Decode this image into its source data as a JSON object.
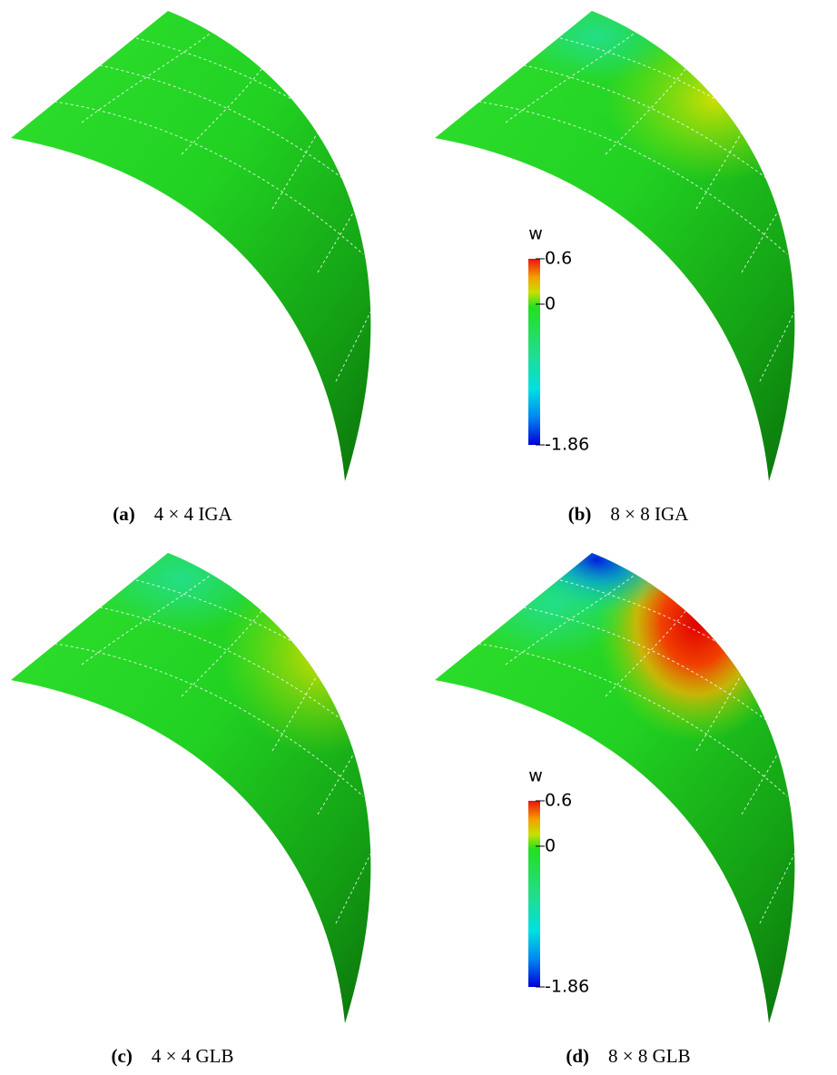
{
  "panels": [
    {
      "label": "(a)",
      "caption": "4 × 4 IGA"
    },
    {
      "label": "(b)",
      "caption": "8 × 8 IGA",
      "colorbar": {
        "title": "w",
        "ticks": [
          0.6,
          0,
          -1.86
        ]
      }
    },
    {
      "label": "(c)",
      "caption": "4 × 4 GLB"
    },
    {
      "label": "(d)",
      "caption": "8 × 8 GLB",
      "colorbar": {
        "title": "w",
        "ticks": [
          0.6,
          0,
          -1.86
        ]
      }
    }
  ]
}
